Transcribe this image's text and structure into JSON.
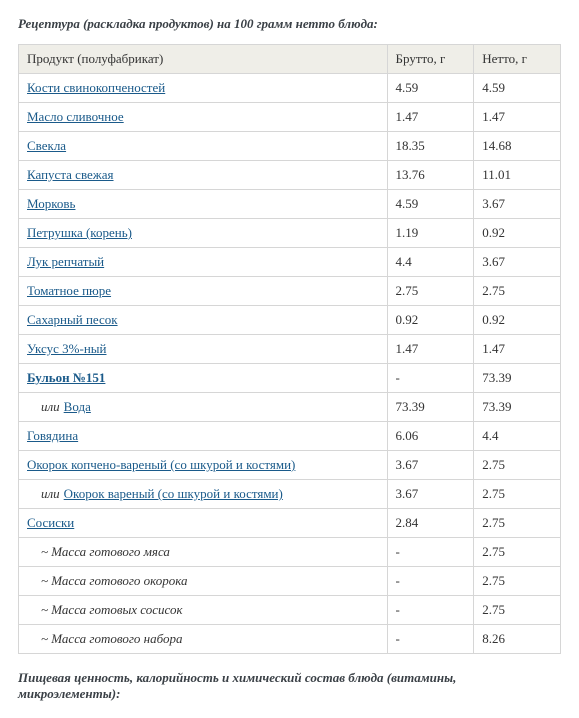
{
  "heading": "Рецептура (раскладка продуктов) на 100 грамм нетто блюда:",
  "footer": "Пищевая ценность, калорийность и химический состав блюда (витамины, микроэлементы):",
  "columns": {
    "product": "Продукт (полуфабрикат)",
    "brutto": "Брутто, г",
    "netto": "Нетто, г"
  },
  "or_label": "или",
  "rows": [
    {
      "kind": "link",
      "label": "Кости свинокопченостей",
      "brutto": "4.59",
      "netto": "4.59"
    },
    {
      "kind": "link",
      "label": "Масло сливочное",
      "brutto": "1.47",
      "netto": "1.47"
    },
    {
      "kind": "link",
      "label": "Свекла",
      "brutto": "18.35",
      "netto": "14.68"
    },
    {
      "kind": "link",
      "label": "Капуста свежая",
      "brutto": "13.76",
      "netto": "11.01"
    },
    {
      "kind": "link",
      "label": "Морковь",
      "brutto": "4.59",
      "netto": "3.67"
    },
    {
      "kind": "link",
      "label": "Петрушка (корень)",
      "brutto": "1.19",
      "netto": "0.92"
    },
    {
      "kind": "link",
      "label": "Лук репчатый",
      "brutto": "4.4",
      "netto": "3.67"
    },
    {
      "kind": "link",
      "label": "Томатное пюре",
      "brutto": "2.75",
      "netto": "2.75"
    },
    {
      "kind": "link",
      "label": "Сахарный песок",
      "brutto": "0.92",
      "netto": "0.92"
    },
    {
      "kind": "link",
      "label": "Уксус 3%-ный",
      "brutto": "1.47",
      "netto": "1.47"
    },
    {
      "kind": "linkbold",
      "label": "Бульон №151",
      "brutto": "-",
      "netto": "73.39"
    },
    {
      "kind": "orlink",
      "label": "Вода",
      "brutto": "73.39",
      "netto": "73.39"
    },
    {
      "kind": "link",
      "label": "Говядина",
      "brutto": "6.06",
      "netto": "4.4"
    },
    {
      "kind": "link",
      "label": "Окорок копчено-вареный (со шкурой и костями)",
      "brutto": "3.67",
      "netto": "2.75"
    },
    {
      "kind": "orlink",
      "label": "Окорок вареный (со шкурой и костями)",
      "brutto": "3.67",
      "netto": "2.75"
    },
    {
      "kind": "link",
      "label": "Сосиски",
      "brutto": "2.84",
      "netto": "2.75"
    },
    {
      "kind": "mass",
      "label": "~ Масса готового мяса",
      "brutto": "-",
      "netto": "2.75"
    },
    {
      "kind": "mass",
      "label": "~ Масса готового окорока",
      "brutto": "-",
      "netto": "2.75"
    },
    {
      "kind": "mass",
      "label": "~ Масса готовых сосисок",
      "brutto": "-",
      "netto": "2.75"
    },
    {
      "kind": "mass",
      "label": "~ Масса готового набора",
      "brutto": "-",
      "netto": "8.26"
    }
  ]
}
